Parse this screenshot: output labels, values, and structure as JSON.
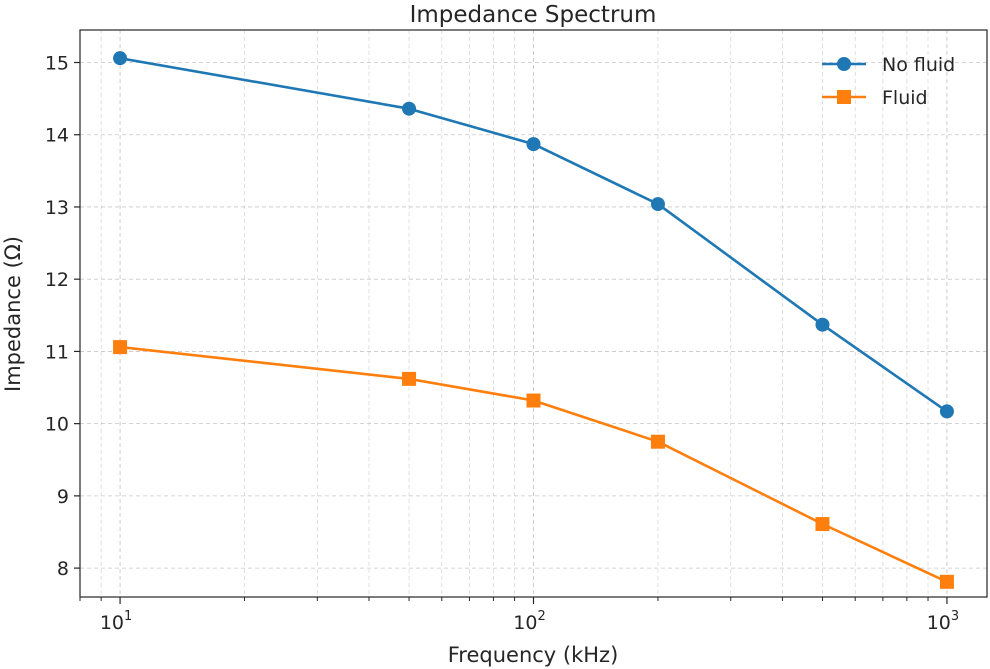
{
  "chart_data": {
    "type": "line",
    "title": "Impedance Spectrum",
    "xlabel": "Frequency (kHz)",
    "ylabel": "Impedance (Ω)",
    "xscale": "log",
    "xlim": [
      8.0,
      1250
    ],
    "ylim": [
      7.6,
      15.45
    ],
    "grid": true,
    "legend_position": "top-right",
    "x": [
      10,
      50,
      100,
      200,
      500,
      1000
    ],
    "series": [
      {
        "name": "No fluid",
        "color": "#1f77b4",
        "marker": "circle",
        "values": [
          15.06,
          14.36,
          13.87,
          13.04,
          11.37,
          10.17
        ]
      },
      {
        "name": "Fluid",
        "color": "#ff7f0e",
        "marker": "square",
        "values": [
          11.06,
          10.62,
          10.32,
          9.75,
          8.61,
          7.81
        ]
      }
    ],
    "x_ticks": [
      {
        "value": 10,
        "base": "10",
        "exp": "1"
      },
      {
        "value": 100,
        "base": "10",
        "exp": "2"
      },
      {
        "value": 1000,
        "base": "10",
        "exp": "3"
      }
    ],
    "y_ticks": [
      {
        "value": 8,
        "label": "8"
      },
      {
        "value": 9,
        "label": "9"
      },
      {
        "value": 10,
        "label": "10"
      },
      {
        "value": 11,
        "label": "11"
      },
      {
        "value": 12,
        "label": "12"
      },
      {
        "value": 13,
        "label": "13"
      },
      {
        "value": 14,
        "label": "14"
      },
      {
        "value": 15,
        "label": "15"
      }
    ]
  }
}
